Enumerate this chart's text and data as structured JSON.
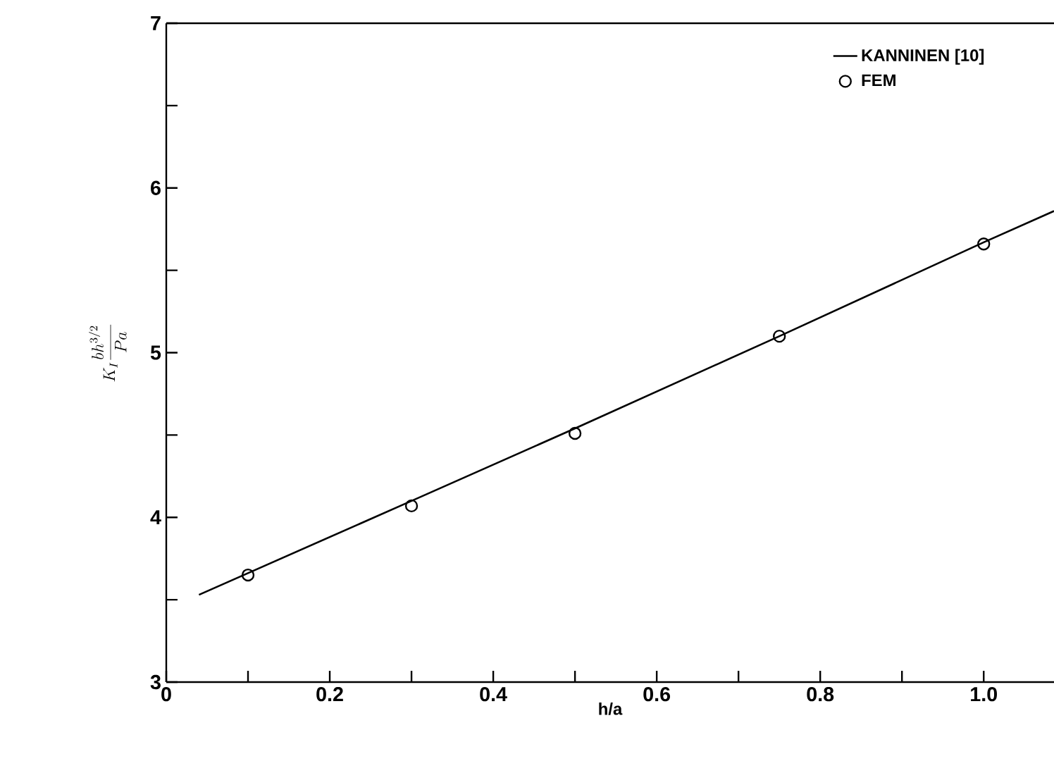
{
  "chart_data": {
    "type": "line",
    "xlabel": "h/a",
    "ylabel": "K_{I}\\frac{bh^{3/2}}{Pa}",
    "xlim": [
      0,
      1.086
    ],
    "ylim": [
      3,
      7
    ],
    "xticks": [
      0,
      {
        "value": 0.1,
        "label": null
      },
      0.2,
      {
        "value": 0.3,
        "label": null
      },
      0.4,
      {
        "value": 0.5,
        "label": null
      },
      0.6,
      {
        "value": 0.7,
        "label": null
      },
      0.8,
      {
        "value": 0.9,
        "label": null
      },
      {
        "value": 1,
        "label": "1.0"
      }
    ],
    "yticks": [
      3,
      {
        "value": 3.5,
        "label": null
      },
      4,
      {
        "value": 4.5,
        "label": null
      },
      5,
      {
        "value": 5.5,
        "label": null
      },
      6,
      {
        "value": 6.5,
        "label": null
      },
      7
    ],
    "legend": "top right",
    "grid": false,
    "series": [
      {
        "name": "KANNINEN [10]",
        "color": "#000000",
        "marker": "none",
        "x": [
          0.04,
          0.3,
          0.5,
          0.75,
          1.0,
          1.086
        ],
        "values": [
          3.53,
          4.1,
          4.54,
          5.1,
          5.67,
          5.86
        ]
      },
      {
        "name": "FEM",
        "type": "scatter",
        "color": "#000000",
        "marker": "circle",
        "x": [
          0.1,
          0.3,
          0.5,
          0.75,
          1.0
        ],
        "values": [
          3.65,
          4.07,
          4.51,
          5.1,
          5.66
        ]
      }
    ]
  }
}
